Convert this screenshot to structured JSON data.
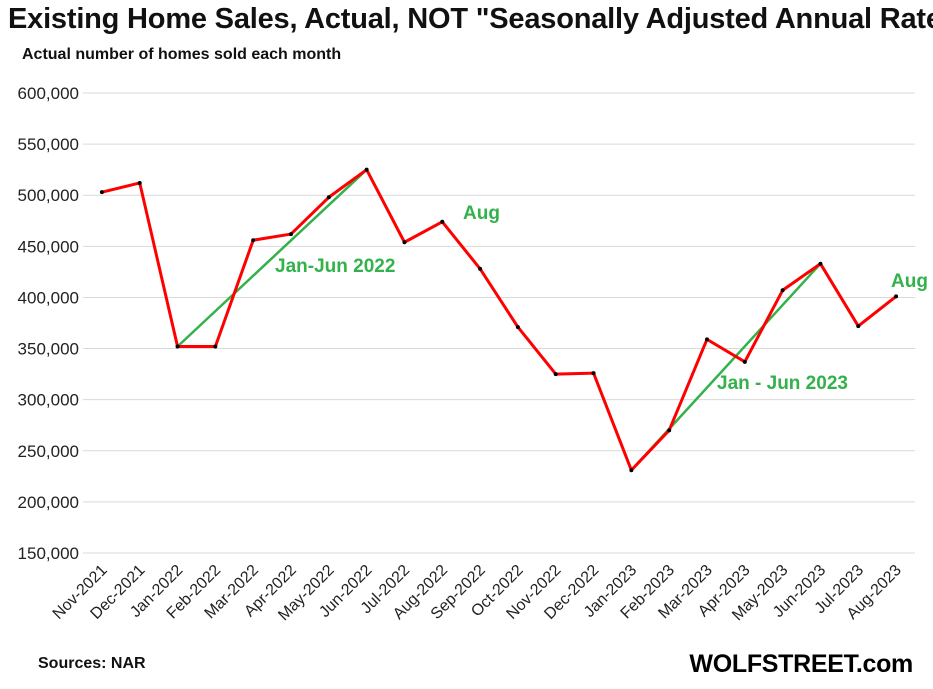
{
  "title": "Existing Home Sales, Actual, NOT \"Seasonally Adjusted Annual Rate\"",
  "subtitle": "Actual number of homes sold each month",
  "source": "Sources: NAR",
  "brand": "WOLFSTREET.com",
  "colors": {
    "series": "#ff0000",
    "trend": "#33b14a",
    "marker": "#000000",
    "grid": "#d9d9d9"
  },
  "chart_data": {
    "type": "line",
    "categories": [
      "Nov-2021",
      "Dec-2021",
      "Jan-2022",
      "Feb-2022",
      "Mar-2022",
      "Apr-2022",
      "May-2022",
      "Jun-2022",
      "Jul-2022",
      "Aug-2022",
      "Sep-2022",
      "Oct-2022",
      "Nov-2022",
      "Dec-2022",
      "Jan-2023",
      "Feb-2023",
      "Mar-2023",
      "Apr-2023",
      "May-2023",
      "Jun-2023",
      "Jul-2023",
      "Aug-2023"
    ],
    "series": [
      {
        "values": [
          503000,
          512000,
          352000,
          352000,
          456000,
          462000,
          498000,
          525000,
          454000,
          474000,
          428000,
          371000,
          325000,
          326000,
          231000,
          270000,
          359000,
          337000,
          407000,
          433000,
          372000,
          401000
        ]
      }
    ],
    "trendlines": [
      {
        "label": "Jan-Jun 2022",
        "from": "Jan-2022",
        "to": "Jun-2022",
        "start": 352000,
        "end": 525000
      },
      {
        "label": "Jan - Jun 2023",
        "from": "Jan-2023",
        "to": "Jun-2023",
        "start": 231000,
        "end": 433000
      }
    ],
    "annotations": [
      {
        "text": "Aug",
        "category": "Aug-2022"
      },
      {
        "text": "Aug",
        "category": "Aug-2023"
      },
      {
        "text": "Jan-Jun 2022"
      },
      {
        "text": "Jan - Jun 2023"
      }
    ],
    "yticks": [
      "600,000",
      "550,000",
      "500,000",
      "450,000",
      "400,000",
      "350,000",
      "300,000",
      "250,000",
      "200,000",
      "150,000"
    ],
    "ylim": [
      150000,
      600000
    ],
    "grid": true,
    "legend": "none"
  }
}
